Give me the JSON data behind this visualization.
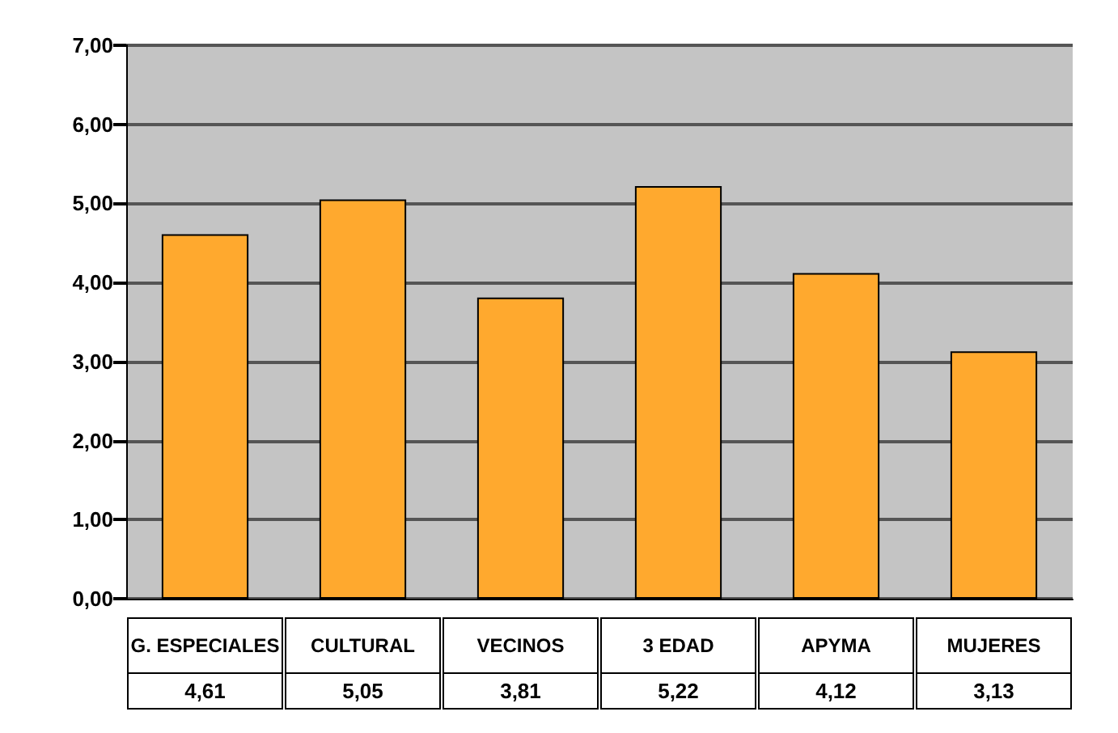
{
  "chart_data": {
    "type": "bar",
    "categories": [
      "G. ESPECIALES",
      "CULTURAL",
      "VECINOS",
      "3 EDAD",
      "APYMA",
      "MUJERES"
    ],
    "values": [
      4.61,
      5.05,
      3.81,
      5.22,
      4.12,
      3.13
    ],
    "color": "#ffa92e",
    "ylim": [
      0,
      7
    ],
    "yticks": [
      {
        "value": 0,
        "label": "0,00"
      },
      {
        "value": 1,
        "label": "1,00"
      },
      {
        "value": 2,
        "label": "2,00"
      },
      {
        "value": 3,
        "label": "3,00"
      },
      {
        "value": 4,
        "label": "4,00"
      },
      {
        "value": 5,
        "label": "5,00"
      },
      {
        "value": 6,
        "label": "6,00"
      },
      {
        "value": 7,
        "label": "7,00"
      }
    ],
    "value_labels": [
      "4,61",
      "5,05",
      "3,81",
      "5,22",
      "4,12",
      "3,13"
    ],
    "grid": "y"
  }
}
